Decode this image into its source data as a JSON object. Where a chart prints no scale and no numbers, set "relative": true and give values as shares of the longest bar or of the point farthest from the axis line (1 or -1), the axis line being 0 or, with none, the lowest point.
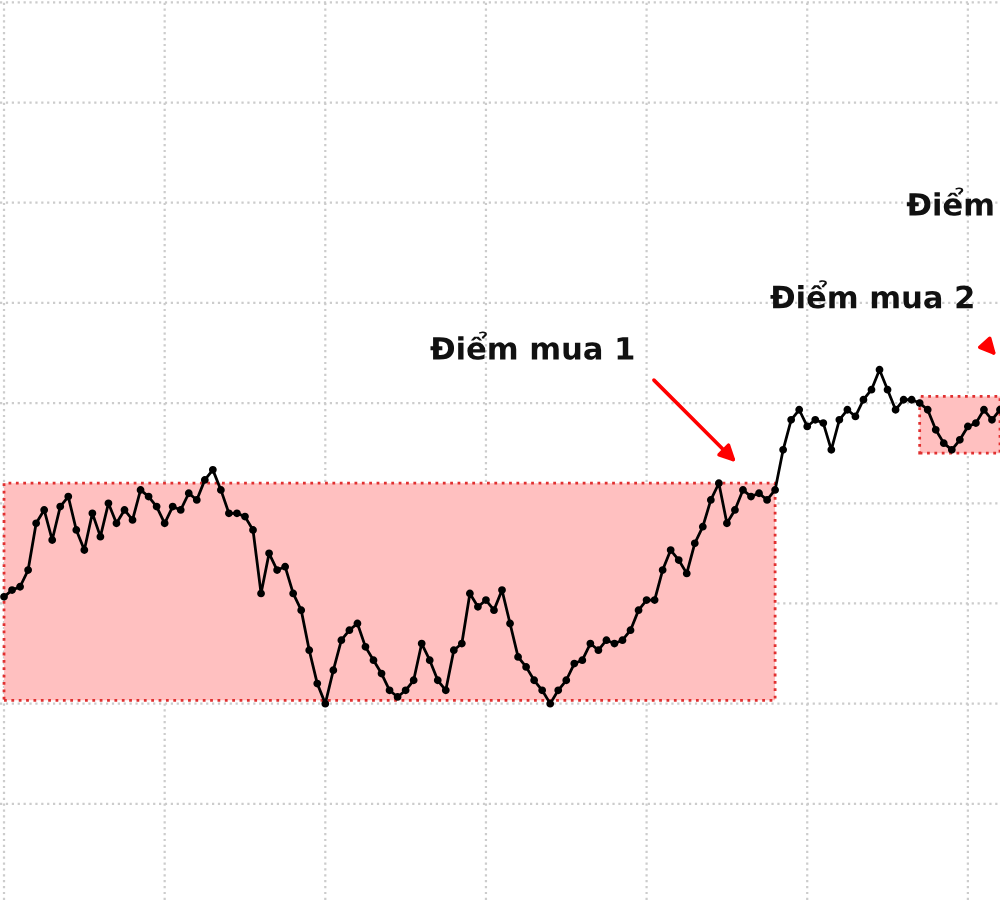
{
  "chart_data": {
    "type": "line",
    "relative": true,
    "grid": true,
    "tick_labels": false,
    "line_style": "solid",
    "categories": [
      null,
      null,
      null,
      null,
      null,
      null,
      null,
      null,
      null,
      null,
      null,
      null,
      null,
      null,
      null,
      null,
      null,
      null,
      null,
      null,
      null,
      null,
      null,
      null,
      null,
      null,
      null,
      null,
      null,
      null,
      null,
      null,
      null,
      null,
      null,
      null,
      null,
      null,
      null,
      null,
      null,
      null,
      null,
      null,
      null,
      null,
      null,
      null,
      null,
      null,
      null,
      null,
      null,
      null,
      null,
      null,
      null,
      null,
      null,
      null,
      null,
      null,
      null,
      null,
      null,
      null,
      null,
      null,
      null,
      null,
      null,
      null,
      null,
      null,
      null,
      null,
      null,
      null,
      null,
      null,
      null,
      null,
      null,
      null,
      null,
      null,
      null,
      null,
      null,
      null,
      null,
      null,
      null,
      null,
      null,
      null,
      null,
      null,
      null,
      null,
      null,
      null,
      null,
      null,
      null,
      null,
      null,
      null,
      null,
      null,
      null,
      null,
      null,
      null,
      null,
      null,
      null,
      null,
      null,
      null,
      null,
      null,
      null,
      null,
      null
    ],
    "series": [
      {
        "color": "#000000",
        "marker": "circle",
        "values": [
          0.32,
          0.34,
          0.35,
          0.4,
          0.54,
          0.58,
          0.49,
          0.59,
          0.62,
          0.52,
          0.46,
          0.57,
          0.5,
          0.6,
          0.54,
          0.58,
          0.55,
          0.64,
          0.62,
          0.59,
          0.54,
          0.59,
          0.58,
          0.63,
          0.61,
          0.67,
          0.7,
          0.64,
          0.57,
          0.57,
          0.56,
          0.52,
          0.33,
          0.45,
          0.4,
          0.41,
          0.33,
          0.28,
          0.16,
          0.06,
          0,
          0.1,
          0.19,
          0.22,
          0.24,
          0.17,
          0.13,
          0.09,
          0.04,
          0.02,
          0.04,
          0.07,
          0.18,
          0.13,
          0.07,
          0.04,
          0.16,
          0.18,
          0.33,
          0.29,
          0.31,
          0.28,
          0.34,
          0.24,
          0.14,
          0.11,
          0.07,
          0.04,
          0,
          0.04,
          0.07,
          0.12,
          0.13,
          0.18,
          0.16,
          0.19,
          0.18,
          0.19,
          0.22,
          0.28,
          0.31,
          0.31,
          0.4,
          0.46,
          0.43,
          0.39,
          0.48,
          0.53,
          0.61,
          0.66,
          0.54,
          0.58,
          0.64,
          0.62,
          0.63,
          0.61,
          0.64,
          0.76,
          0.85,
          0.88,
          0.83,
          0.85,
          0.84,
          0.76,
          0.85,
          0.88,
          0.86,
          0.91,
          0.94,
          1,
          0.94,
          0.88,
          0.91,
          0.91,
          0.9,
          0.88,
          0.82,
          0.78,
          0.76,
          0.79,
          0.83,
          0.84,
          0.88,
          0.85,
          0.88
        ],
        "upper": [
          0.66,
          0.66,
          0.66,
          0.66,
          0.66,
          0.66,
          0.66,
          0.66,
          0.66,
          0.66,
          0.66,
          0.66,
          0.66,
          0.66,
          0.66,
          0.66,
          0.66,
          0.66,
          0.66,
          0.66,
          0.66,
          0.66,
          0.66,
          0.66,
          0.66,
          0.66,
          0.66,
          0.66,
          0.66,
          0.66,
          0.66,
          0.66,
          0.66,
          0.66,
          0.66,
          0.66,
          0.66,
          0.66,
          0.66,
          0.66,
          0.66,
          0.66,
          0.66,
          0.66,
          0.66,
          0.66,
          0.66,
          0.66,
          0.66,
          0.66,
          0.66,
          0.66,
          0.66,
          0.66,
          0.66,
          0.66,
          0.66,
          0.66,
          0.66,
          0.66,
          0.66,
          0.66,
          0.66,
          0.66,
          0.66,
          0.66,
          0.66,
          0.66,
          0.66,
          0.66,
          0.66,
          0.66,
          0.66,
          0.66,
          0.66,
          0.66,
          0.66,
          0.66,
          0.66,
          0.66,
          0.66,
          0.66,
          0.66,
          0.66,
          0.66,
          0.66,
          0.66,
          0.66,
          0.66,
          0.66,
          0.66,
          0.66,
          0.66,
          0.66,
          0.66,
          0.66,
          0.66,
          null,
          null,
          null,
          null,
          null,
          null,
          null,
          null,
          null,
          null,
          null,
          null,
          null,
          null,
          null,
          null,
          null,
          0.92,
          0.92,
          0.92,
          0.92,
          0.92,
          0.92,
          0.92,
          0.92,
          0.92,
          0.92,
          0.92
        ],
        "lower": [
          0.01,
          0.01,
          0.01,
          0.01,
          0.01,
          0.01,
          0.01,
          0.01,
          0.01,
          0.01,
          0.01,
          0.01,
          0.01,
          0.01,
          0.01,
          0.01,
          0.01,
          0.01,
          0.01,
          0.01,
          0.01,
          0.01,
          0.01,
          0.01,
          0.01,
          0.01,
          0.01,
          0.01,
          0.01,
          0.01,
          0.01,
          0.01,
          0.01,
          0.01,
          0.01,
          0.01,
          0.01,
          0.01,
          0.01,
          0.01,
          0.01,
          0.01,
          0.01,
          0.01,
          0.01,
          0.01,
          0.01,
          0.01,
          0.01,
          0.01,
          0.01,
          0.01,
          0.01,
          0.01,
          0.01,
          0.01,
          0.01,
          0.01,
          0.01,
          0.01,
          0.01,
          0.01,
          0.01,
          0.01,
          0.01,
          0.01,
          0.01,
          0.01,
          0.01,
          0.01,
          0.01,
          0.01,
          0.01,
          0.01,
          0.01,
          0.01,
          0.01,
          0.01,
          0.01,
          0.01,
          0.01,
          0.01,
          0.01,
          0.01,
          0.01,
          0.01,
          0.01,
          0.01,
          0.01,
          0.01,
          0.01,
          0.01,
          0.01,
          0.01,
          0.01,
          0.01,
          0.01,
          null,
          null,
          null,
          null,
          null,
          null,
          null,
          null,
          null,
          null,
          null,
          null,
          null,
          null,
          null,
          null,
          null,
          0.75,
          0.75,
          0.75,
          0.75,
          0.75,
          0.75,
          0.75,
          0.75,
          0.75,
          0.75,
          0.75
        ]
      }
    ],
    "annotations": [
      "Điểm mua 1",
      "Điểm mua 2",
      "Điểm"
    ]
  }
}
